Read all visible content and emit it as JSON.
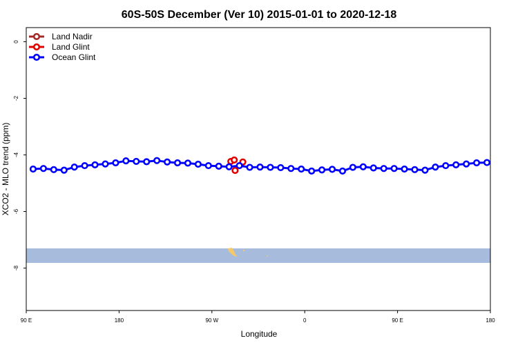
{
  "chart_data": {
    "type": "line",
    "title": "60S-50S December (Ver 10)   2015-01-01 to 2020-12-18",
    "xlabel": "Longitude",
    "ylabel": "XCO2 - MLO trend (ppm)",
    "xlim": [
      -90,
      180
    ],
    "ylim": [
      -9.5,
      0.5
    ],
    "x_ticks": [
      {
        "value": -90,
        "label": "90 E"
      },
      {
        "value": -36,
        "label": "180"
      },
      {
        "value": 18,
        "label": "90 W"
      },
      {
        "value": 72,
        "label": "0"
      },
      {
        "value": 126,
        "label": "90 E"
      },
      {
        "value": 180,
        "label": "180"
      }
    ],
    "y_ticks": [
      0,
      -2,
      -4,
      -6,
      -8
    ],
    "grid": false,
    "legend_position": "top-left",
    "series": [
      {
        "name": "Land Nadir",
        "color": "#a52a2a",
        "x": [],
        "y": []
      },
      {
        "name": "Land Glint",
        "color": "#e00000",
        "x": [
          29,
          31,
          31.5,
          36
        ],
        "y": [
          -4.23,
          -4.18,
          -4.55,
          -4.25
        ]
      },
      {
        "name": "Ocean Glint",
        "color": "#0000ff",
        "x": [
          -86,
          -80,
          -74,
          -68,
          -62,
          -56,
          -50,
          -44,
          -38,
          -32,
          -26,
          -20,
          -14,
          -8,
          -2,
          4,
          10,
          16,
          22,
          28,
          34,
          40,
          46,
          52,
          58,
          64,
          70,
          76,
          82,
          88,
          94,
          100,
          106,
          112,
          118,
          124,
          130,
          136,
          142,
          148,
          154,
          160,
          166,
          172,
          178
        ],
        "y": [
          -4.5,
          -4.48,
          -4.52,
          -4.54,
          -4.43,
          -4.38,
          -4.35,
          -4.32,
          -4.28,
          -4.21,
          -4.23,
          -4.24,
          -4.2,
          -4.25,
          -4.28,
          -4.29,
          -4.33,
          -4.38,
          -4.4,
          -4.42,
          -4.38,
          -4.44,
          -4.43,
          -4.44,
          -4.45,
          -4.48,
          -4.5,
          -4.57,
          -4.53,
          -4.51,
          -4.57,
          -4.44,
          -4.42,
          -4.46,
          -4.48,
          -4.48,
          -4.5,
          -4.52,
          -4.54,
          -4.43,
          -4.38,
          -4.35,
          -4.32,
          -4.28,
          -4.27
        ]
      }
    ],
    "map_band": {
      "ocean_color": "#a7bcdc",
      "land_color": "#f5c86a"
    }
  }
}
